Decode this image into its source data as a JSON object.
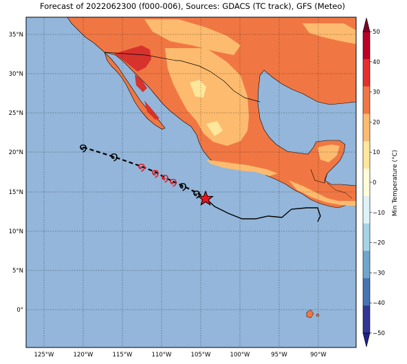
{
  "title": "Forecast of 2022062300 (f000-006), Sources: GDACS (TC track), GFS (Meteo)",
  "colors": {
    "ocean": "#93b6da",
    "land_warm": "#fdbb6f",
    "land_hot": "#f07743",
    "land_veryhot": "#d8322d",
    "land_mild": "#fee79b",
    "track": "#000000",
    "forecast_symbol": "#e8141c",
    "star": "#e8141c"
  },
  "axes": {
    "lon_labels": [
      "125°W",
      "120°W",
      "115°W",
      "110°W",
      "105°W",
      "100°W",
      "95°W",
      "90°W"
    ],
    "lat_labels": [
      "35°N",
      "30°N",
      "25°N",
      "20°N",
      "15°N",
      "10°N",
      "5°N",
      "0°"
    ]
  },
  "colorbar": {
    "label": "Min Temperature (°C)",
    "ticks": [
      "50",
      "40",
      "30",
      "20",
      "10",
      "0",
      "−10",
      "−20",
      "−30",
      "−40",
      "−50"
    ],
    "colors": [
      "#800026",
      "#bd0026",
      "#e3302c",
      "#f07743",
      "#fdbb6f",
      "#fee79b",
      "#fffcd8",
      "#def3f7",
      "#a6d3e7",
      "#6fa6cf",
      "#4474b2",
      "#313695",
      "#20208a"
    ]
  },
  "tc_symbol_glyph": "໑",
  "tc_track": {
    "symbol_count_past": 6,
    "symbol_count_forecast": 5
  }
}
